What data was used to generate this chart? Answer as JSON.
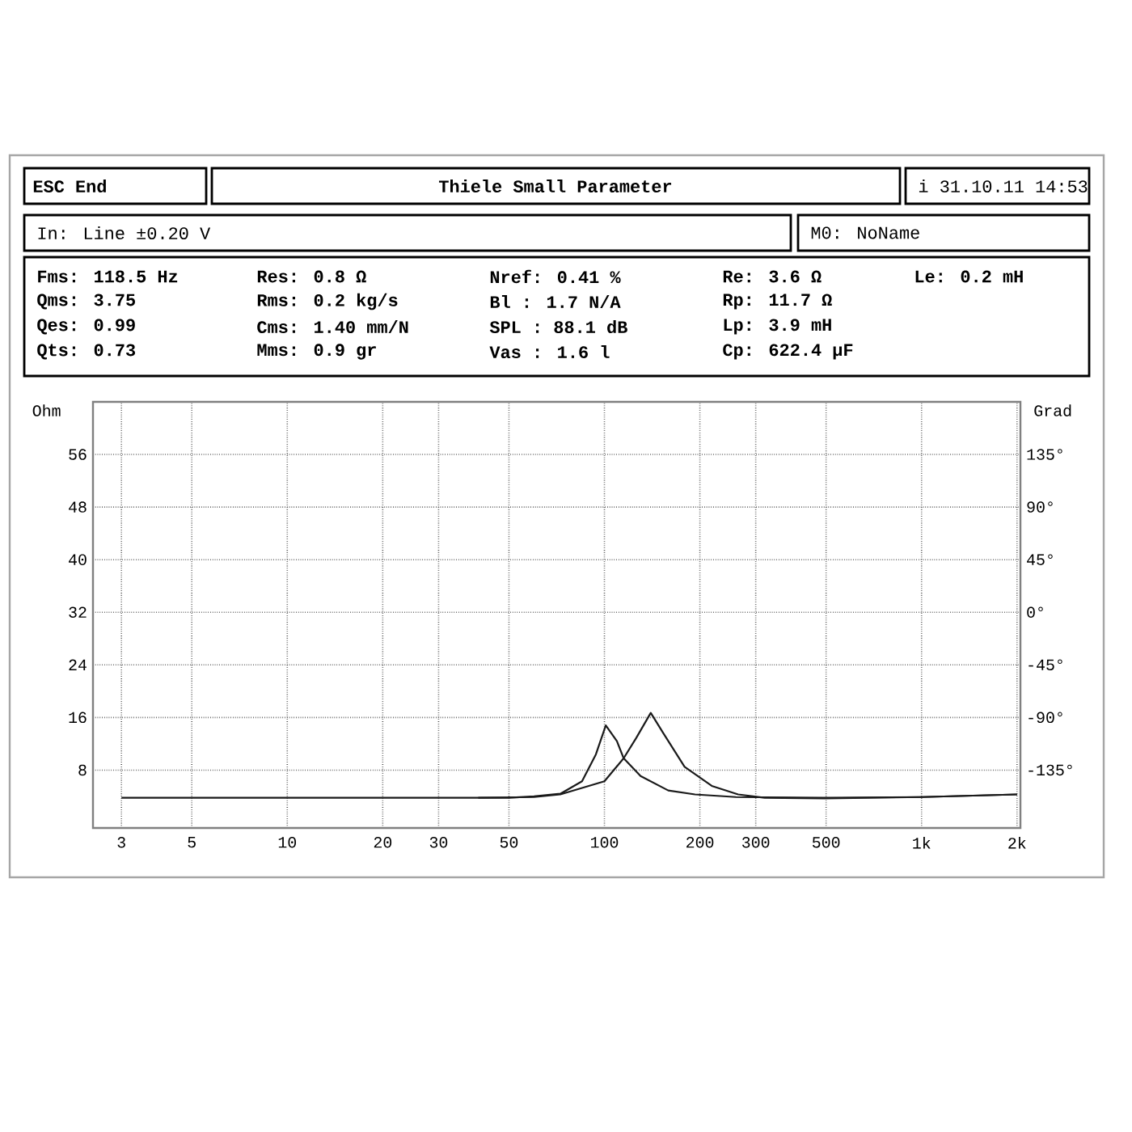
{
  "chart_data": {
    "type": "line",
    "title": "Thiele Small Parameter",
    "annotations": [
      "ESC End",
      "i 31.10.11 14:53",
      "In: Line ±0.20 V",
      "M0: NoName",
      "Fms: 118.5 Hz",
      "Qms: 3.75",
      "Qes: 0.99",
      "Qts: 0.73",
      "Res: 0.8 Ω",
      "Rms: 0.2 kg/s",
      "Cms: 1.40 mm/N",
      "Mms: 0.9 gr",
      "Nref: 0.41 %",
      "Bl : 1.7 N/A",
      "SPL : 88.1 dB",
      "Vas : 1.6 l",
      "Re: 3.6 Ω",
      "Rp: 11.7 Ω",
      "Lp: 3.9 mH",
      "Cp: 622.4 µF",
      "Le: 0.2 mH"
    ],
    "ylabel": "Ohm",
    "y2label": "Grad",
    "log": "x",
    "grid": true,
    "marker": "none",
    "line_style": "solid",
    "xlim": [
      2.44,
      2050
    ],
    "ylim": [
      -0.8,
      64
    ],
    "y2lim": [
      -184.5,
      180
    ],
    "xticks": [
      3,
      5,
      10,
      20,
      30,
      50,
      100,
      200,
      300,
      500,
      {
        "value": 1000,
        "label": "1k"
      },
      {
        "value": 2000,
        "label": "2k"
      }
    ],
    "yticks": [
      8,
      16,
      24,
      32,
      40,
      48,
      56
    ],
    "y2ticks": [
      {
        "value": -135,
        "label": "-135°"
      },
      {
        "value": -90,
        "label": "-90°"
      },
      {
        "value": -45,
        "label": "-45°"
      },
      {
        "value": 0,
        "label": "0°"
      },
      {
        "value": 45,
        "label": "45°"
      },
      {
        "value": 90,
        "label": "90°"
      },
      {
        "value": 135,
        "label": "135°"
      }
    ],
    "series": [
      {
        "color": "#1a1a1a",
        "x": [
          3,
          20,
          50,
          60,
          72.6,
          85,
          94,
          101,
          109.5,
          115,
          130,
          159,
          193,
          260,
          500,
          1000,
          2000
        ],
        "values": [
          3.8,
          3.8,
          3.8,
          4.0,
          4.4,
          6.3,
          10.4,
          14.8,
          12.4,
          9.8,
          7.1,
          4.9,
          4.3,
          3.9,
          3.8,
          3.9,
          4.3
        ]
      },
      {
        "color": "#1a1a1a",
        "x": [
          40,
          60,
          72.6,
          100,
          115,
          126,
          140,
          153,
          179,
          218,
          264,
          320,
          500,
          1000,
          2000
        ],
        "values": [
          3.8,
          3.9,
          4.3,
          6.3,
          9.8,
          12.9,
          16.7,
          13.7,
          8.5,
          5.6,
          4.3,
          3.8,
          3.7,
          3.9,
          4.3
        ]
      }
    ]
  }
}
